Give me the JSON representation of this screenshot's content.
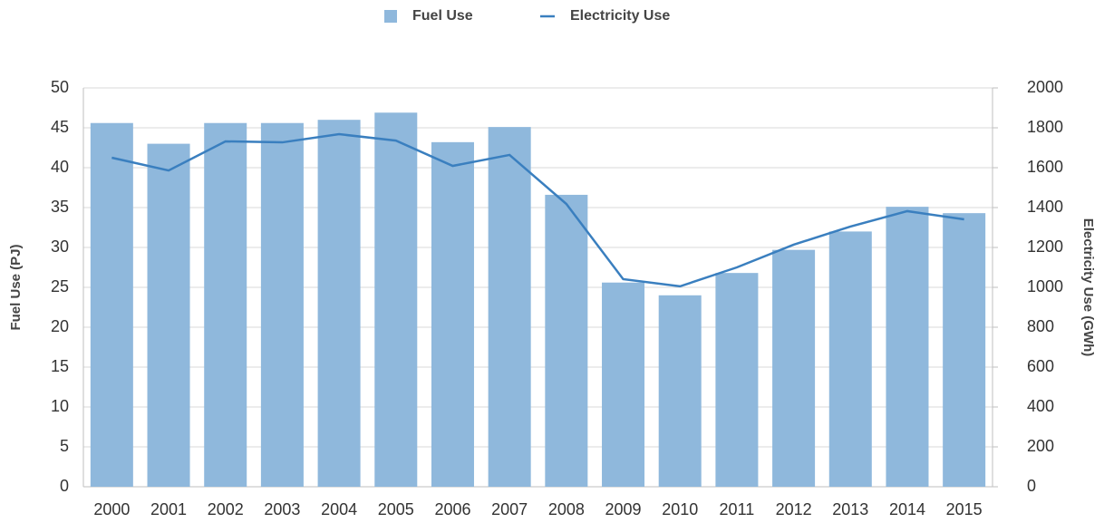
{
  "chart_data": {
    "type": "bar_line",
    "categories": [
      "2000",
      "2001",
      "2002",
      "2003",
      "2004",
      "2005",
      "2006",
      "2007",
      "2008",
      "2009",
      "2010",
      "2011",
      "2012",
      "2013",
      "2014",
      "2015"
    ],
    "series": [
      {
        "name": "Fuel Use",
        "type": "bar",
        "color": "#8fb8dc",
        "values": [
          45.6,
          43.0,
          45.6,
          45.6,
          46.0,
          46.9,
          43.2,
          45.1,
          36.6,
          25.6,
          24.0,
          26.8,
          29.7,
          32.0,
          35.1,
          34.3
        ]
      },
      {
        "name": "Electricity Use",
        "type": "line",
        "axis": "y2",
        "color": "#3a7fbf",
        "values": [
          1650,
          1586,
          1732,
          1727,
          1768,
          1736,
          1609,
          1664,
          1418,
          1041,
          1005,
          1100,
          1214,
          1305,
          1382,
          1341
        ]
      }
    ],
    "ylabel": "Fuel Use (PJ)",
    "y2label": "Electricity Use (GWh)",
    "ylim": [
      0,
      50
    ],
    "yticks": [
      0,
      5,
      10,
      15,
      20,
      25,
      30,
      35,
      40,
      45,
      50
    ],
    "y2lim": [
      0,
      2000
    ],
    "y2ticks": [
      0,
      200,
      400,
      600,
      800,
      1000,
      1200,
      1400,
      1600,
      1800,
      2000
    ],
    "grid": true,
    "legend": "top"
  }
}
